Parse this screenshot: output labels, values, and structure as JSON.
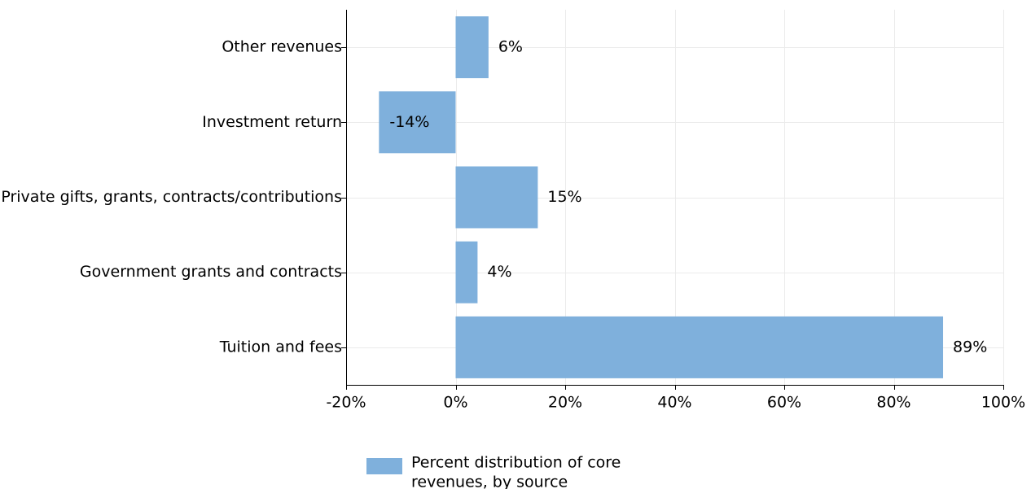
{
  "chart_data": {
    "type": "bar",
    "orientation": "horizontal",
    "categories": [
      "Other revenues",
      "Investment return",
      "Private gifts, grants, contracts/contributions",
      "Government grants and contracts",
      "Tuition and fees"
    ],
    "series": [
      {
        "name": "Percent distribution of core revenues, by source",
        "values": [
          6,
          -14,
          15,
          4,
          89
        ],
        "labels": [
          "6%",
          "-14%",
          "15%",
          "4%",
          "89%"
        ],
        "color": "#7fb0dc"
      }
    ],
    "xlim": [
      -20,
      100
    ],
    "xticks": [
      -20,
      0,
      20,
      40,
      60,
      80,
      100
    ],
    "xtick_labels": [
      "-20%",
      "0%",
      "20%",
      "40%",
      "60%",
      "80%",
      "100%"
    ],
    "grid": true,
    "legend": {
      "position": "bottom-left",
      "lines": [
        "Percent distribution of core",
        "revenues, by source"
      ]
    }
  }
}
